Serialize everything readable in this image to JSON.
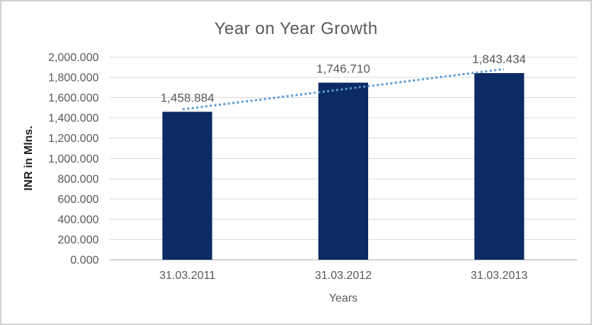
{
  "chart_data": {
    "type": "bar",
    "title": "Year on Year Growth",
    "xlabel": "Years",
    "ylabel": "INR in Mlns.",
    "categories": [
      "31.03.2011",
      "31.03.2012",
      "31.03.2013"
    ],
    "values": [
      1458.884,
      1746.71,
      1843.434
    ],
    "data_labels": [
      "1,458.884",
      "1,746.710",
      "1,843.434"
    ],
    "ylim": [
      0,
      2000
    ],
    "ytick_step": 200,
    "ytick_labels": [
      "0.000",
      "200.000",
      "400.000",
      "600.000",
      "800.000",
      "1,000.000",
      "1,200.000",
      "1,400.000",
      "1,600.000",
      "1,800.000",
      "2,000.000"
    ],
    "grid": true,
    "legend_position": "none",
    "series_name": "INR in Mlns.",
    "trendline": {
      "type": "linear",
      "style": "dotted"
    }
  },
  "colors": {
    "bar": "#0C2A63",
    "trendline": "#5B9BD5",
    "gridline": "#D9D9D9",
    "axis_line": "#C6C6C6",
    "title_text": "#595959",
    "tick_text": "#595959",
    "data_label_text": "#595959",
    "y_axis_title_text": "#1F1F1F",
    "frame_border": "#D2D0D0"
  }
}
